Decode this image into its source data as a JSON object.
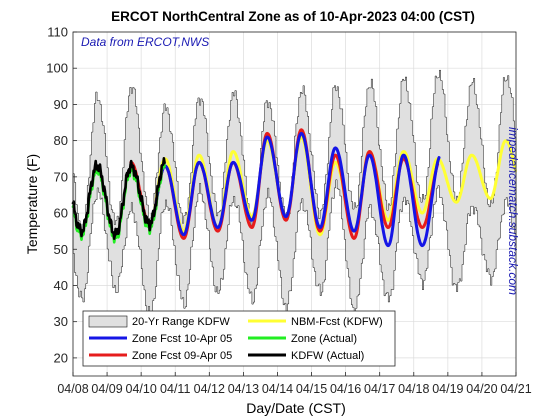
{
  "chart_data": {
    "type": "line",
    "title": "ERCOT NorthCentral Zone as of 10-Apr-2023 04:00 (CST)",
    "annotation": "Data from ERCOT,NWS",
    "side_text": "impedancematch.substack.com",
    "xlabel": "Day/Date (CST)",
    "ylabel": "Temperature (F)",
    "x_ticks": [
      "04/08",
      "04/09",
      "04/10",
      "04/11",
      "04/12",
      "04/13",
      "04/14",
      "04/15",
      "04/16",
      "04/17",
      "04/18",
      "04/19",
      "04/20",
      "04/21"
    ],
    "y_ticks": [
      20,
      30,
      40,
      50,
      60,
      70,
      80,
      90,
      100,
      110
    ],
    "xlim": [
      0,
      13
    ],
    "ylim": [
      15,
      110
    ],
    "grid": true,
    "legend_position": "bottom-left",
    "legend": [
      {
        "key": "range",
        "label": "20-Yr Range KDFW",
        "color": "#e0e0e0",
        "style": "patch"
      },
      {
        "key": "nbm",
        "label": "NBM-Fcst (KDFW)",
        "color": "#ffff33",
        "style": "line"
      },
      {
        "key": "zone10",
        "label": "Zone Fcst 10-Apr 05",
        "color": "#1515e6",
        "style": "line"
      },
      {
        "key": "zoneact",
        "label": "Zone (Actual)",
        "color": "#22ee22",
        "style": "line"
      },
      {
        "key": "zone09",
        "label": "Zone Fcst 09-Apr 05",
        "color": "#e61c1c",
        "style": "line"
      },
      {
        "key": "kdfw",
        "label": "KDFW (Actual)",
        "color": "#000000",
        "style": "line"
      }
    ],
    "range_daily": {
      "days": [
        "04/08",
        "04/09",
        "04/10",
        "04/11",
        "04/12",
        "04/13",
        "04/14",
        "04/15",
        "04/16",
        "04/17",
        "04/18",
        "04/19",
        "04/20"
      ],
      "low_min": [
        36,
        39,
        32,
        35,
        38,
        36,
        34,
        38,
        33,
        36,
        41,
        39,
        42
      ],
      "low_max": [
        55,
        57,
        59,
        58,
        60,
        58,
        59,
        60,
        61,
        62,
        63,
        64,
        62
      ],
      "high_min": [
        66,
        61,
        63,
        66,
        64,
        65,
        63,
        68,
        61,
        64,
        66,
        62,
        63
      ],
      "high_max": [
        92,
        95,
        89,
        92,
        93,
        91,
        94,
        95,
        96,
        97,
        99,
        96,
        98
      ]
    },
    "series": [
      {
        "name": "KDFW (Actual)",
        "color": "#000000",
        "range": [
          0,
          2.7
        ],
        "lows": [
          55,
          54,
          57
        ],
        "highs": [
          73,
          73,
          null
        ]
      },
      {
        "name": "Zone (Actual)",
        "color": "#22ee22",
        "range": [
          0,
          2.7
        ],
        "lows": [
          54,
          53,
          56
        ],
        "highs": [
          72,
          72,
          null
        ]
      },
      {
        "name": "Zone Fcst 09-Apr 05",
        "color": "#e61c1c",
        "range": [
          1.7,
          10.7
        ],
        "lows": [
          57,
          56,
          57,
          53,
          55,
          56,
          58,
          55,
          53,
          56
        ],
        "highs": [
          74,
          74,
          73,
          74,
          74,
          82,
          83,
          76,
          77,
          75
        ]
      },
      {
        "name": "Zone Fcst 10-Apr 05",
        "color": "#1515e6",
        "range": [
          2.2,
          10.75
        ],
        "lows": [
          57,
          56,
          57,
          54,
          56,
          58,
          59,
          56,
          55,
          51
        ],
        "highs": [
          73,
          74,
          73,
          74,
          74,
          81,
          82,
          78,
          76,
          76
        ]
      },
      {
        "name": "NBM-Fcst (KDFW)",
        "color": "#ffff33",
        "range": [
          2.17,
          13
        ],
        "lows": [
          58,
          58,
          57,
          55,
          56,
          59,
          59,
          54,
          55,
          58,
          60,
          63,
          64
        ],
        "highs": [
          74,
          75,
          75,
          76,
          77,
          80,
          81,
          74,
          77,
          77,
          75,
          76,
          80
        ]
      }
    ]
  }
}
